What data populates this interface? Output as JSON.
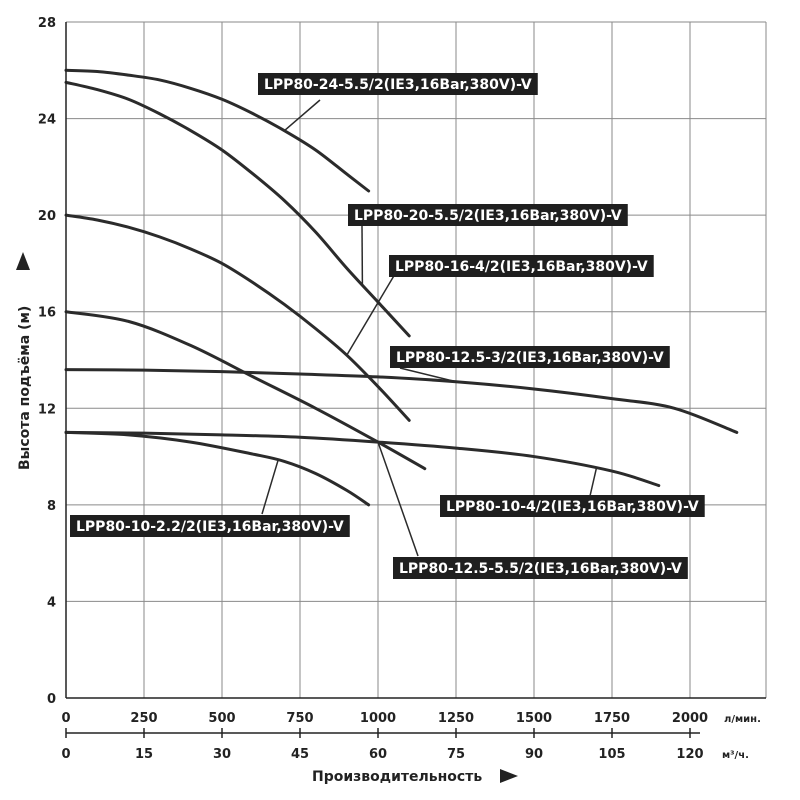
{
  "chart_data": {
    "type": "line",
    "xlabel": "Производительность",
    "ylabel": "Высота подъёма (м)",
    "x_unit_primary": "л/мин.",
    "x_unit_secondary": "м³/ч.",
    "xlim": [
      0,
      2250
    ],
    "ylim": [
      0,
      28
    ],
    "grid": true,
    "x_ticks_primary": [
      "0",
      "250",
      "500",
      "750",
      "1000",
      "1250",
      "1500",
      "1750",
      "2000"
    ],
    "x_ticks_secondary": [
      "0",
      "15",
      "30",
      "45",
      "60",
      "75",
      "90",
      "105",
      "120"
    ],
    "y_ticks": [
      "0",
      "4",
      "8",
      "12",
      "16",
      "20",
      "24",
      "28"
    ],
    "series": [
      {
        "name": "LPP80-24-5.5/2(IE3,16Bar,380V)-V",
        "x": [
          0,
          100,
          200,
          300,
          400,
          500,
          600,
          700,
          800,
          900,
          970
        ],
        "y": [
          26,
          25.95,
          25.8,
          25.6,
          25.25,
          24.8,
          24.2,
          23.5,
          22.7,
          21.7,
          21
        ]
      },
      {
        "name": "LPP80-20-5.5/2(IE3,16Bar,380V)-V",
        "x": [
          0,
          100,
          200,
          300,
          400,
          500,
          600,
          700,
          800,
          900,
          1000,
          1100
        ],
        "y": [
          25.5,
          25.2,
          24.8,
          24.2,
          23.5,
          22.7,
          21.7,
          20.6,
          19.3,
          17.8,
          16.4,
          15
        ]
      },
      {
        "name": "LPP80-16-4/2(IE3,16Bar,380V)-V",
        "x": [
          0,
          100,
          200,
          300,
          400,
          500,
          600,
          700,
          800,
          900,
          1000,
          1100
        ],
        "y": [
          20,
          19.8,
          19.5,
          19.1,
          18.6,
          18,
          17.2,
          16.3,
          15.3,
          14.2,
          12.9,
          11.5
        ]
      },
      {
        "name": "LPP80-12.5-5.5/2(IE3,16Bar,380V)-V",
        "x": [
          0,
          200,
          400,
          600,
          800,
          1000,
          1150
        ],
        "y": [
          16,
          15.6,
          14.6,
          13.3,
          12,
          10.6,
          9.5
        ]
      },
      {
        "name": "LPP80-12.5-3/2(IE3,16Bar,380V)-V",
        "x": [
          0,
          250,
          500,
          750,
          1000,
          1250,
          1500,
          1750,
          1950,
          2150
        ],
        "y": [
          13.6,
          13.58,
          13.52,
          13.42,
          13.3,
          13.1,
          12.8,
          12.4,
          12,
          11
        ]
      },
      {
        "name": "LPP80-10-4/2(IE3,16Bar,380V)-V",
        "x": [
          0,
          250,
          500,
          750,
          1000,
          1250,
          1500,
          1750,
          1900
        ],
        "y": [
          11,
          10.97,
          10.9,
          10.8,
          10.6,
          10.35,
          10,
          9.4,
          8.8
        ]
      },
      {
        "name": "LPP80-10-2.2/2(IE3,16Bar,380V)-V",
        "x": [
          0,
          200,
          400,
          600,
          700,
          800,
          900,
          970
        ],
        "y": [
          11,
          10.9,
          10.6,
          10.1,
          9.8,
          9.3,
          8.6,
          8
        ]
      }
    ]
  }
}
